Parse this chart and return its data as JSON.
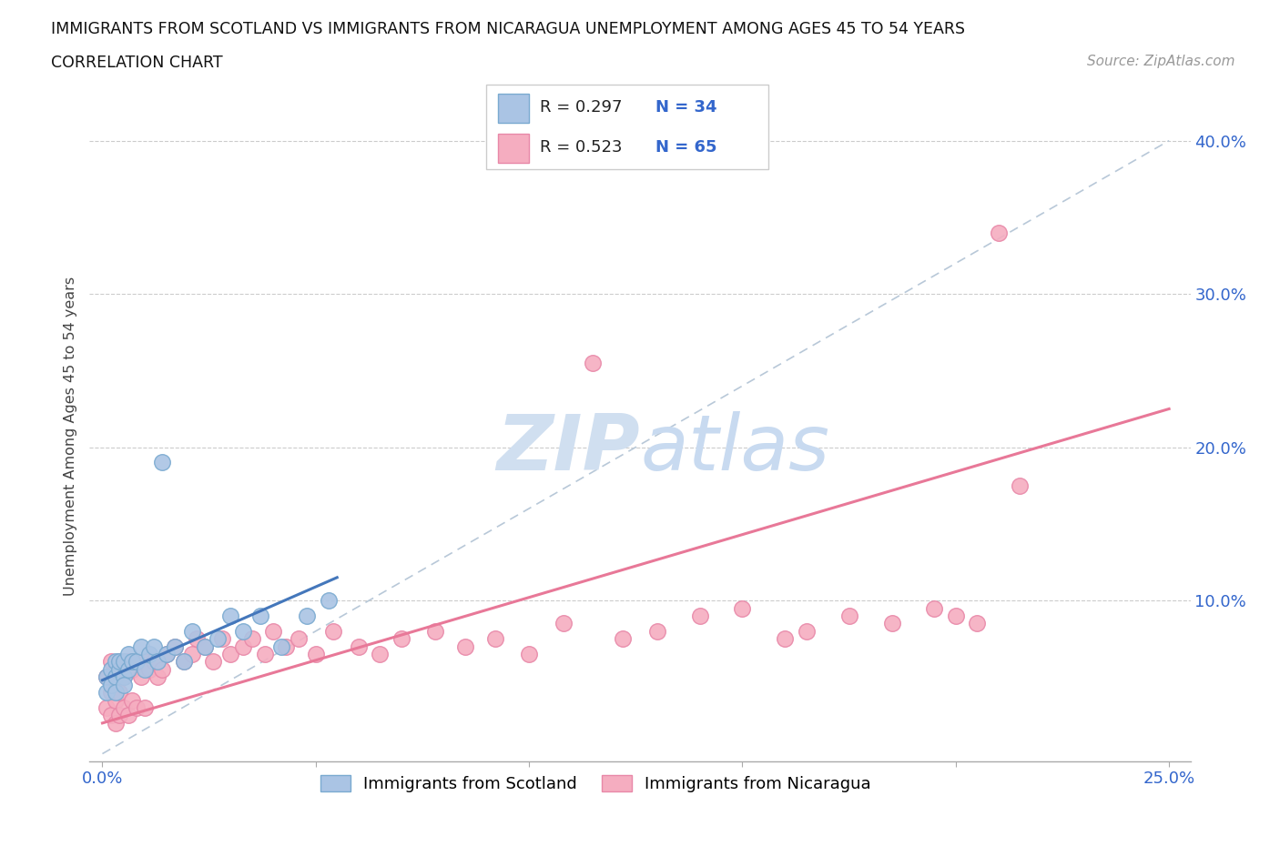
{
  "title_line1": "IMMIGRANTS FROM SCOTLAND VS IMMIGRANTS FROM NICARAGUA UNEMPLOYMENT AMONG AGES 45 TO 54 YEARS",
  "title_line2": "CORRELATION CHART",
  "source_text": "Source: ZipAtlas.com",
  "ylabel": "Unemployment Among Ages 45 to 54 years",
  "xlim": [
    0.0,
    0.25
  ],
  "ylim": [
    -0.005,
    0.42
  ],
  "xticks": [
    0.0,
    0.05,
    0.1,
    0.15,
    0.2,
    0.25
  ],
  "xticklabels": [
    "0.0%",
    "",
    "",
    "",
    "",
    "25.0%"
  ],
  "yticks": [
    0.0,
    0.1,
    0.2,
    0.3,
    0.4
  ],
  "yticklabels": [
    "",
    "10.0%",
    "20.0%",
    "30.0%",
    "40.0%"
  ],
  "scotland_color": "#aac4e4",
  "nicaragua_color": "#f5adc0",
  "scotland_edge": "#7aaad0",
  "nicaragua_edge": "#e888a8",
  "trend_scotland_color": "#4477bb",
  "trend_nicaragua_color": "#e87898",
  "diag_color": "#b8c8d8",
  "watermark_color": "#d0dff0",
  "scotland_R": 0.297,
  "scotland_N": 34,
  "nicaragua_R": 0.523,
  "nicaragua_N": 65,
  "legend_scotland": "Immigrants from Scotland",
  "legend_nicaragua": "Immigrants from Nicaragua",
  "scotland_x": [
    0.001,
    0.001,
    0.002,
    0.002,
    0.003,
    0.003,
    0.003,
    0.004,
    0.004,
    0.005,
    0.005,
    0.005,
    0.006,
    0.006,
    0.007,
    0.008,
    0.009,
    0.01,
    0.011,
    0.012,
    0.013,
    0.014,
    0.015,
    0.017,
    0.019,
    0.021,
    0.024,
    0.027,
    0.03,
    0.033,
    0.037,
    0.042,
    0.048,
    0.053
  ],
  "scotland_y": [
    0.05,
    0.04,
    0.045,
    0.055,
    0.05,
    0.06,
    0.04,
    0.055,
    0.06,
    0.05,
    0.06,
    0.045,
    0.065,
    0.055,
    0.06,
    0.06,
    0.07,
    0.055,
    0.065,
    0.07,
    0.06,
    0.19,
    0.065,
    0.07,
    0.06,
    0.08,
    0.07,
    0.075,
    0.09,
    0.08,
    0.09,
    0.07,
    0.09,
    0.1
  ],
  "nicaragua_x": [
    0.001,
    0.001,
    0.002,
    0.002,
    0.002,
    0.003,
    0.003,
    0.003,
    0.004,
    0.004,
    0.004,
    0.005,
    0.005,
    0.006,
    0.006,
    0.007,
    0.007,
    0.008,
    0.008,
    0.009,
    0.01,
    0.01,
    0.011,
    0.012,
    0.013,
    0.014,
    0.015,
    0.017,
    0.019,
    0.021,
    0.022,
    0.024,
    0.026,
    0.028,
    0.03,
    0.033,
    0.035,
    0.038,
    0.04,
    0.043,
    0.046,
    0.05,
    0.054,
    0.06,
    0.065,
    0.07,
    0.078,
    0.085,
    0.092,
    0.1,
    0.108,
    0.115,
    0.122,
    0.13,
    0.14,
    0.15,
    0.16,
    0.165,
    0.175,
    0.185,
    0.195,
    0.2,
    0.205,
    0.21,
    0.215
  ],
  "nicaragua_y": [
    0.03,
    0.05,
    0.025,
    0.04,
    0.06,
    0.02,
    0.035,
    0.055,
    0.025,
    0.04,
    0.06,
    0.03,
    0.05,
    0.025,
    0.06,
    0.035,
    0.055,
    0.03,
    0.06,
    0.05,
    0.03,
    0.06,
    0.055,
    0.06,
    0.05,
    0.055,
    0.065,
    0.07,
    0.06,
    0.065,
    0.075,
    0.07,
    0.06,
    0.075,
    0.065,
    0.07,
    0.075,
    0.065,
    0.08,
    0.07,
    0.075,
    0.065,
    0.08,
    0.07,
    0.065,
    0.075,
    0.08,
    0.07,
    0.075,
    0.065,
    0.085,
    0.255,
    0.075,
    0.08,
    0.09,
    0.095,
    0.075,
    0.08,
    0.09,
    0.085,
    0.095,
    0.09,
    0.085,
    0.34,
    0.175
  ],
  "scotland_trend_x": [
    0.0,
    0.055
  ],
  "nicaragua_trend_x": [
    0.0,
    0.25
  ],
  "scotland_trend_y_start": 0.048,
  "scotland_trend_y_end": 0.115,
  "nicaragua_trend_y_start": 0.02,
  "nicaragua_trend_y_end": 0.225
}
